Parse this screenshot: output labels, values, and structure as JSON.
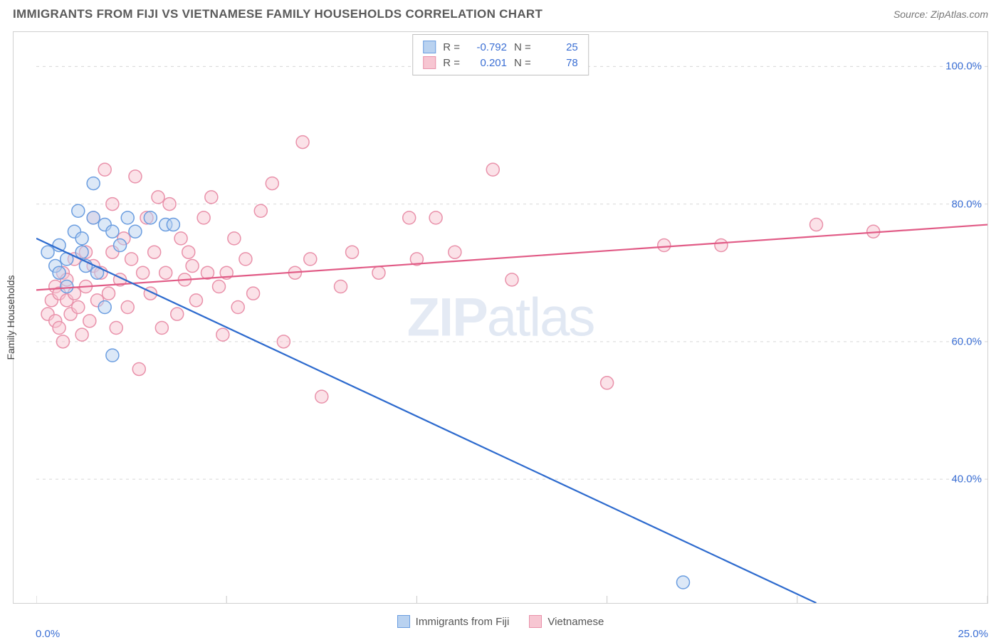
{
  "header": {
    "title": "IMMIGRANTS FROM FIJI VS VIETNAMESE FAMILY HOUSEHOLDS CORRELATION CHART",
    "source_label": "Source:",
    "source_name": "ZipAtlas.com"
  },
  "axis": {
    "y_label": "Family Households",
    "x_min_label": "0.0%",
    "x_max_label": "25.0%",
    "y_ticks": [
      {
        "label": "100.0%",
        "value": 100
      },
      {
        "label": "80.0%",
        "value": 80
      },
      {
        "label": "60.0%",
        "value": 60
      },
      {
        "label": "40.0%",
        "value": 40
      }
    ],
    "x_tick_values": [
      0,
      5,
      10,
      15,
      20,
      25
    ],
    "xlim": [
      0,
      25
    ],
    "ylim": [
      22,
      105
    ],
    "grid_color": "#d8d8d8",
    "axis_color": "#c8c8c8",
    "tick_label_color": "#3b6fd4",
    "label_fontsize": 14
  },
  "watermark": {
    "zip": "ZIP",
    "atlas": "atlas"
  },
  "series": {
    "fiji": {
      "name": "Immigrants from Fiji",
      "fill": "#b9d2f0",
      "stroke": "#6a9de0",
      "line_color": "#2e6bce",
      "R_label": "R =",
      "R_value": "-0.792",
      "N_label": "N =",
      "N_value": "25",
      "regression": {
        "x1": 0,
        "y1": 75,
        "x2": 20.5,
        "y2": 22
      },
      "points": [
        [
          0.3,
          73
        ],
        [
          0.5,
          71
        ],
        [
          0.6,
          74
        ],
        [
          0.6,
          70
        ],
        [
          0.8,
          72
        ],
        [
          0.8,
          68
        ],
        [
          1.0,
          76
        ],
        [
          1.1,
          79
        ],
        [
          1.2,
          75
        ],
        [
          1.2,
          73
        ],
        [
          1.3,
          71
        ],
        [
          1.5,
          78
        ],
        [
          1.5,
          83
        ],
        [
          1.6,
          70
        ],
        [
          1.8,
          77
        ],
        [
          1.8,
          65
        ],
        [
          2.0,
          76
        ],
        [
          2.0,
          58
        ],
        [
          2.2,
          74
        ],
        [
          2.4,
          78
        ],
        [
          2.6,
          76
        ],
        [
          3.0,
          78
        ],
        [
          3.4,
          77
        ],
        [
          3.6,
          77
        ],
        [
          17.0,
          25
        ]
      ]
    },
    "vietnamese": {
      "name": "Vietnamese",
      "fill": "#f7c6d2",
      "stroke": "#e991aa",
      "line_color": "#e15b86",
      "R_label": "R =",
      "R_value": "0.201",
      "N_label": "N =",
      "N_value": "78",
      "regression": {
        "x1": 0,
        "y1": 67.5,
        "x2": 25,
        "y2": 77
      },
      "points": [
        [
          0.3,
          64
        ],
        [
          0.4,
          66
        ],
        [
          0.5,
          63
        ],
        [
          0.5,
          68
        ],
        [
          0.6,
          62
        ],
        [
          0.6,
          67
        ],
        [
          0.7,
          70
        ],
        [
          0.7,
          60
        ],
        [
          0.8,
          66
        ],
        [
          0.8,
          69
        ],
        [
          0.9,
          64
        ],
        [
          1.0,
          67
        ],
        [
          1.0,
          72
        ],
        [
          1.1,
          65
        ],
        [
          1.2,
          61
        ],
        [
          1.3,
          68
        ],
        [
          1.3,
          73
        ],
        [
          1.4,
          63
        ],
        [
          1.5,
          71
        ],
        [
          1.5,
          78
        ],
        [
          1.6,
          66
        ],
        [
          1.7,
          70
        ],
        [
          1.8,
          85
        ],
        [
          1.9,
          67
        ],
        [
          2.0,
          73
        ],
        [
          2.0,
          80
        ],
        [
          2.1,
          62
        ],
        [
          2.2,
          69
        ],
        [
          2.3,
          75
        ],
        [
          2.4,
          65
        ],
        [
          2.5,
          72
        ],
        [
          2.6,
          84
        ],
        [
          2.7,
          56
        ],
        [
          2.8,
          70
        ],
        [
          2.9,
          78
        ],
        [
          3.0,
          67
        ],
        [
          3.1,
          73
        ],
        [
          3.2,
          81
        ],
        [
          3.3,
          62
        ],
        [
          3.4,
          70
        ],
        [
          3.5,
          80
        ],
        [
          3.7,
          64
        ],
        [
          3.8,
          75
        ],
        [
          3.9,
          69
        ],
        [
          4.0,
          73
        ],
        [
          4.1,
          71
        ],
        [
          4.2,
          66
        ],
        [
          4.4,
          78
        ],
        [
          4.5,
          70
        ],
        [
          4.6,
          81
        ],
        [
          4.8,
          68
        ],
        [
          4.9,
          61
        ],
        [
          5.0,
          70
        ],
        [
          5.2,
          75
        ],
        [
          5.3,
          65
        ],
        [
          5.5,
          72
        ],
        [
          5.7,
          67
        ],
        [
          5.9,
          79
        ],
        [
          6.2,
          83
        ],
        [
          6.5,
          60
        ],
        [
          6.8,
          70
        ],
        [
          7.0,
          89
        ],
        [
          7.2,
          72
        ],
        [
          7.5,
          52
        ],
        [
          8.0,
          68
        ],
        [
          8.3,
          73
        ],
        [
          9.0,
          70
        ],
        [
          9.8,
          78
        ],
        [
          10.0,
          72
        ],
        [
          10.5,
          78
        ],
        [
          11.0,
          73
        ],
        [
          12.0,
          85
        ],
        [
          12.5,
          69
        ],
        [
          15.0,
          54
        ],
        [
          16.5,
          74
        ],
        [
          18.0,
          74
        ],
        [
          20.5,
          77
        ],
        [
          22.0,
          76
        ]
      ]
    }
  },
  "marker": {
    "radius": 9,
    "fill_opacity": 0.5,
    "stroke_width": 1.5
  },
  "line": {
    "width": 2.2
  }
}
